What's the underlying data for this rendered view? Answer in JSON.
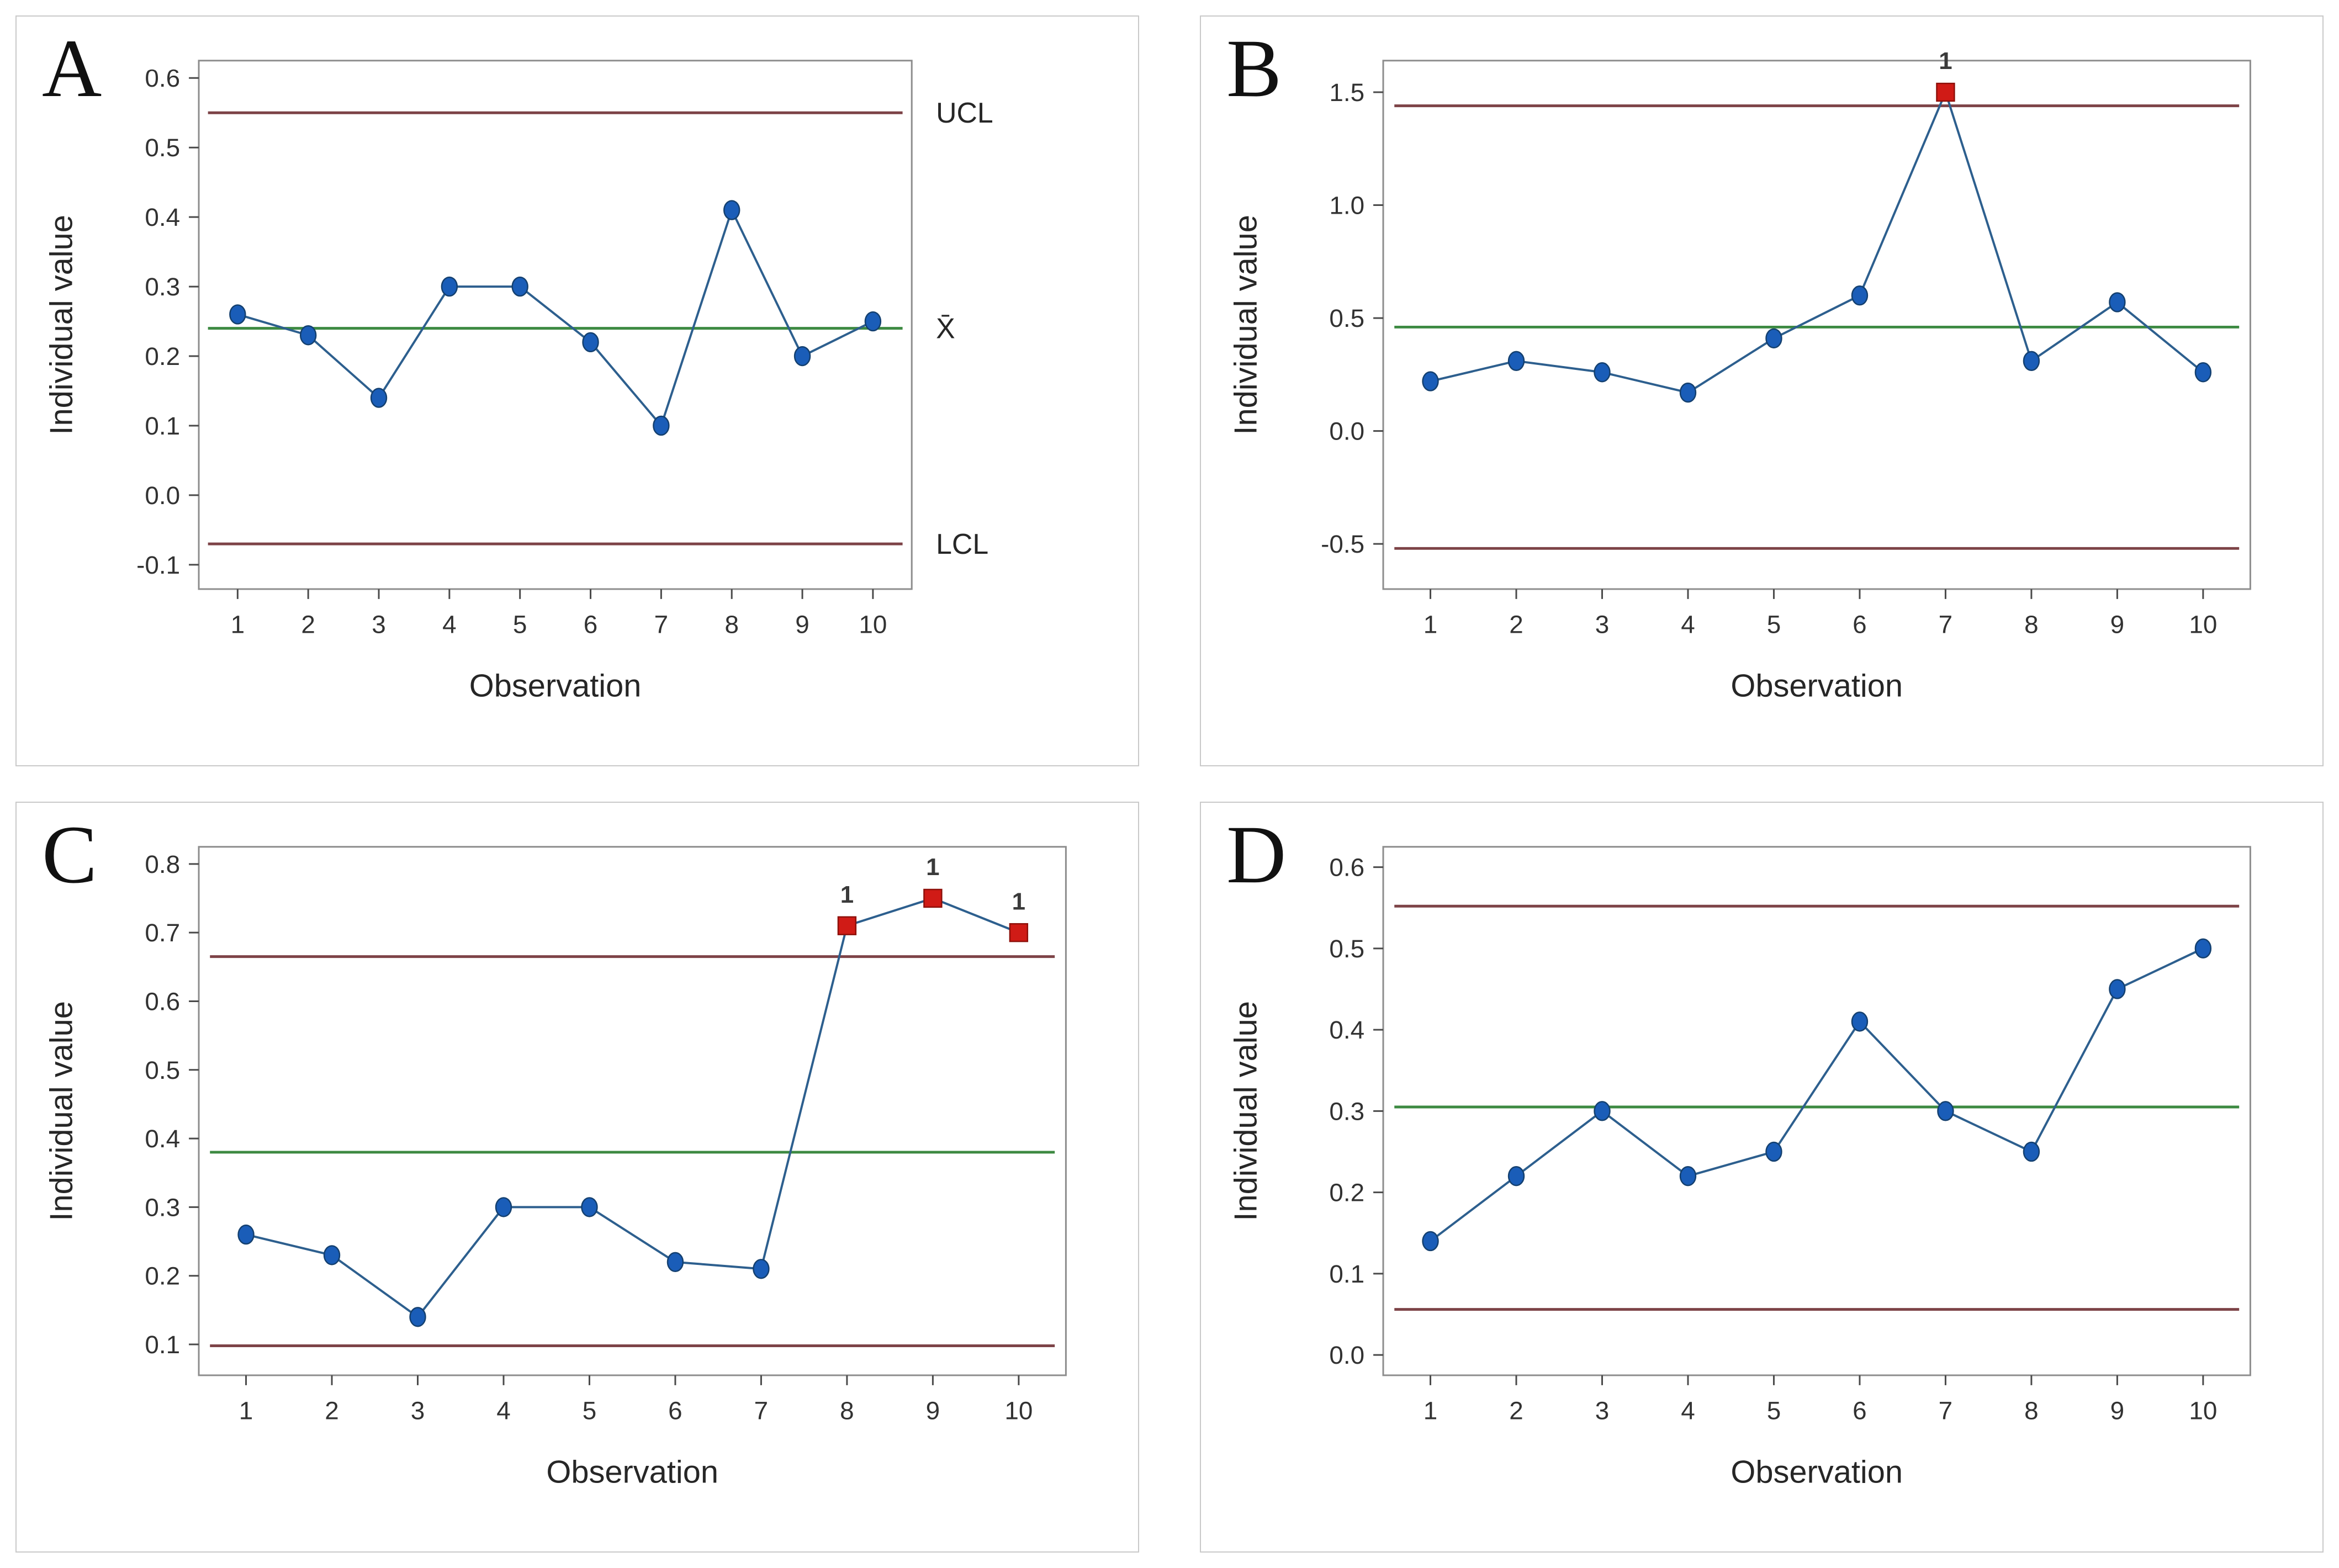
{
  "figure": {
    "panel_count": 4,
    "panel_letters": [
      "A",
      "B",
      "C",
      "D"
    ]
  },
  "colors": {
    "background": "#ffffff",
    "panel_border": "#c9c9c9",
    "plot_border": "#8d8d8d",
    "series_line": "#2d5f8e",
    "marker_fill": "#1a5db8",
    "marker_stroke": "#14406f",
    "center_line": "#3d8a42",
    "limit_line": "#7d4347",
    "ooc_marker_fill": "#d01b16",
    "ooc_marker_stroke": "#8e100a",
    "tick_text": "#323232",
    "axis_title_text": "#262626",
    "ooc_label_text": "#3a3a3a",
    "limit_label_text": "#262626"
  },
  "chart_data": [
    {
      "type": "line",
      "panel_label": "A",
      "xlabel": "Observation",
      "ylabel": "Individual value",
      "x": [
        1,
        2,
        3,
        4,
        5,
        6,
        7,
        8,
        9,
        10
      ],
      "values": [
        0.26,
        0.23,
        0.14,
        0.3,
        0.3,
        0.22,
        0.1,
        0.41,
        0.2,
        0.25
      ],
      "center_line": 0.24,
      "ucl": 0.55,
      "lcl": -0.07,
      "limit_labels": {
        "ucl": "UCL",
        "center": "X̄",
        "lcl": "LCL"
      },
      "right_labels": true,
      "out_of_control": [],
      "ooc_label": "1",
      "ylim": [
        -0.135,
        0.625
      ],
      "xlim": [
        0.45,
        10.55
      ],
      "y_ticks": [
        {
          "v": 0.6,
          "label": "0.6"
        },
        {
          "v": 0.5,
          "label": "0.5"
        },
        {
          "v": 0.4,
          "label": "0.4"
        },
        {
          "v": 0.3,
          "label": "0.3"
        },
        {
          "v": 0.2,
          "label": "0.2"
        },
        {
          "v": 0.1,
          "label": "0.1"
        },
        {
          "v": 0.0,
          "label": "0.0"
        },
        {
          "v": -0.1,
          "label": "-0.1"
        }
      ],
      "x_ticks": [
        "1",
        "2",
        "3",
        "4",
        "5",
        "6",
        "7",
        "8",
        "9",
        "10"
      ],
      "grid": false,
      "legend": "none"
    },
    {
      "type": "line",
      "panel_label": "B",
      "xlabel": "Observation",
      "ylabel": "Individual value",
      "x": [
        1,
        2,
        3,
        4,
        5,
        6,
        7,
        8,
        9,
        10
      ],
      "values": [
        0.22,
        0.31,
        0.26,
        0.17,
        0.41,
        0.6,
        1.5,
        0.31,
        0.57,
        0.26
      ],
      "center_line": 0.46,
      "ucl": 1.44,
      "lcl": -0.52,
      "limit_labels": {
        "ucl": "",
        "center": "",
        "lcl": ""
      },
      "right_labels": false,
      "out_of_control": [
        7
      ],
      "ooc_label": "1",
      "ylim": [
        -0.7,
        1.64
      ],
      "xlim": [
        0.45,
        10.55
      ],
      "y_ticks": [
        {
          "v": 1.5,
          "label": "1.5"
        },
        {
          "v": 1.0,
          "label": "1.0"
        },
        {
          "v": 0.5,
          "label": "0.5"
        },
        {
          "v": 0.0,
          "label": "0.0"
        },
        {
          "v": -0.5,
          "label": "-0.5"
        }
      ],
      "x_ticks": [
        "1",
        "2",
        "3",
        "4",
        "5",
        "6",
        "7",
        "8",
        "9",
        "10"
      ],
      "grid": false,
      "legend": "none"
    },
    {
      "type": "line",
      "panel_label": "C",
      "xlabel": "Observation",
      "ylabel": "Individual value",
      "x": [
        1,
        2,
        3,
        4,
        5,
        6,
        7,
        8,
        9,
        10
      ],
      "values": [
        0.26,
        0.23,
        0.14,
        0.3,
        0.3,
        0.22,
        0.21,
        0.71,
        0.75,
        0.7
      ],
      "center_line": 0.38,
      "ucl": 0.665,
      "lcl": 0.098,
      "limit_labels": {
        "ucl": "",
        "center": "",
        "lcl": ""
      },
      "right_labels": false,
      "out_of_control": [
        8,
        9,
        10
      ],
      "ooc_label": "1",
      "ylim": [
        0.055,
        0.825
      ],
      "xlim": [
        0.45,
        10.55
      ],
      "y_ticks": [
        {
          "v": 0.8,
          "label": "0.8"
        },
        {
          "v": 0.7,
          "label": "0.7"
        },
        {
          "v": 0.6,
          "label": "0.6"
        },
        {
          "v": 0.5,
          "label": "0.5"
        },
        {
          "v": 0.4,
          "label": "0.4"
        },
        {
          "v": 0.3,
          "label": "0.3"
        },
        {
          "v": 0.2,
          "label": "0.2"
        },
        {
          "v": 0.1,
          "label": "0.1"
        }
      ],
      "x_ticks": [
        "1",
        "2",
        "3",
        "4",
        "5",
        "6",
        "7",
        "8",
        "9",
        "10"
      ],
      "grid": false,
      "legend": "none"
    },
    {
      "type": "line",
      "panel_label": "D",
      "xlabel": "Observation",
      "ylabel": "Individual value",
      "x": [
        1,
        2,
        3,
        4,
        5,
        6,
        7,
        8,
        9,
        10
      ],
      "values": [
        0.14,
        0.22,
        0.3,
        0.22,
        0.25,
        0.41,
        0.3,
        0.25,
        0.45,
        0.5
      ],
      "center_line": 0.305,
      "ucl": 0.552,
      "lcl": 0.056,
      "limit_labels": {
        "ucl": "",
        "center": "",
        "lcl": ""
      },
      "right_labels": false,
      "out_of_control": [],
      "ooc_label": "1",
      "ylim": [
        -0.025,
        0.625
      ],
      "xlim": [
        0.45,
        10.55
      ],
      "y_ticks": [
        {
          "v": 0.6,
          "label": "0.6"
        },
        {
          "v": 0.5,
          "label": "0.5"
        },
        {
          "v": 0.4,
          "label": "0.4"
        },
        {
          "v": 0.3,
          "label": "0.3"
        },
        {
          "v": 0.2,
          "label": "0.2"
        },
        {
          "v": 0.1,
          "label": "0.1"
        },
        {
          "v": 0.0,
          "label": "0.0"
        }
      ],
      "x_ticks": [
        "1",
        "2",
        "3",
        "4",
        "5",
        "6",
        "7",
        "8",
        "9",
        "10"
      ],
      "grid": false,
      "legend": "none"
    }
  ]
}
